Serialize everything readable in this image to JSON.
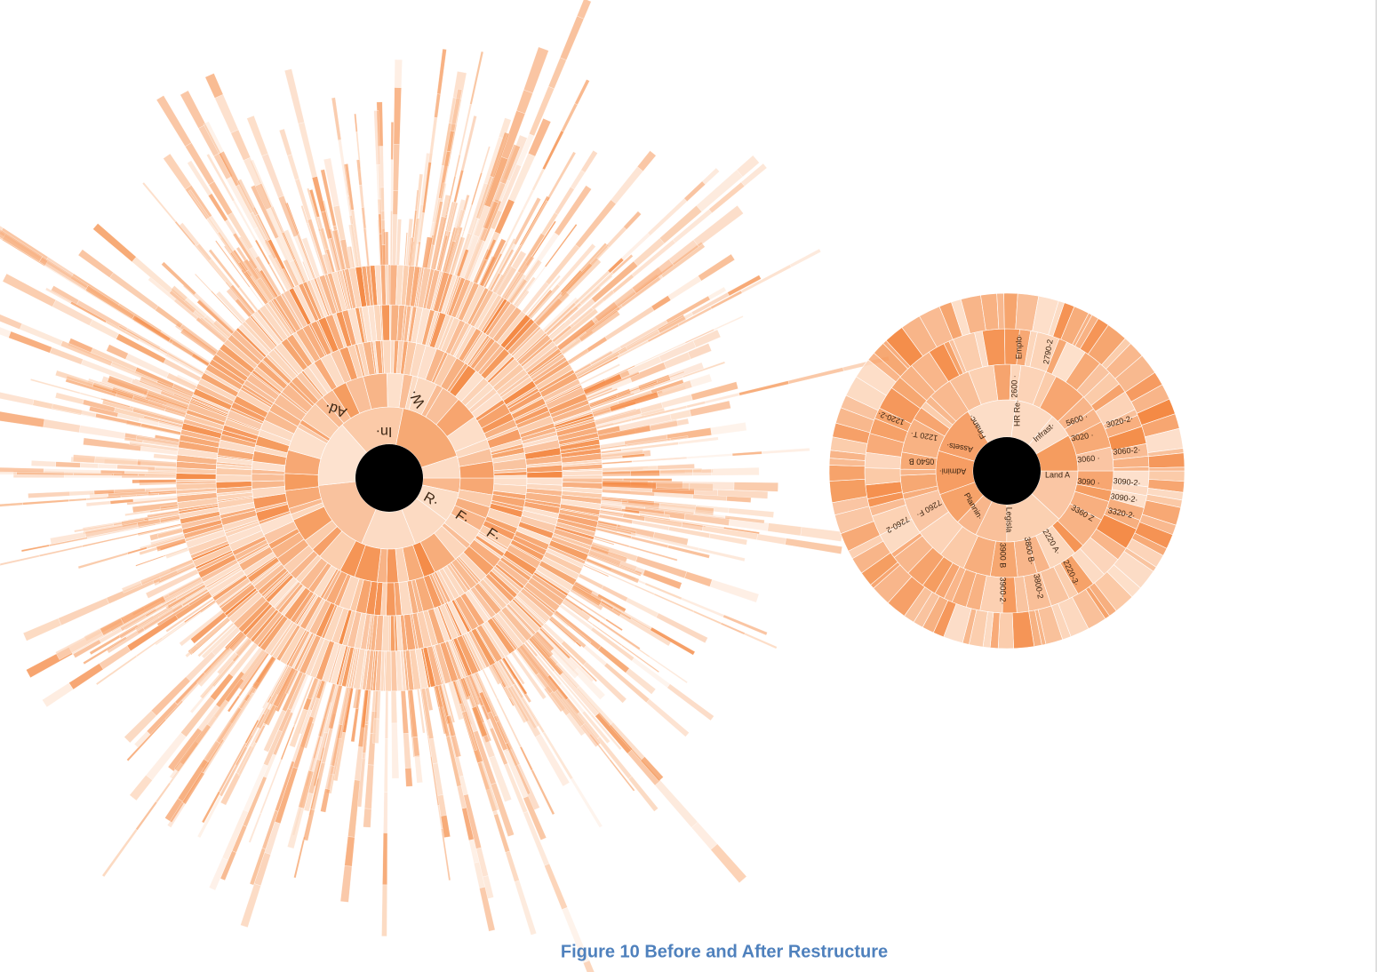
{
  "figure": {
    "before_labels": [
      "Ad·",
      "In·",
      "W·",
      "R·",
      "F·",
      "F·"
    ],
    "after_labels": [
      "Emplo·",
      "2790-2",
      "2600 ·",
      "HR Re·",
      "Infrast·",
      "5600 ·",
      "3020 ·",
      "3020-2·",
      "3060 ·",
      "3060-2·",
      "Land A",
      "3090 ·",
      "3090-2·",
      "3090-2·",
      "3320-2·",
      "3360 Z",
      "2220 A·",
      "2220-3·",
      "3800 B·",
      "3800-2",
      "3900 B",
      "3900-2·",
      "Legisla",
      "Plannin·",
      "Admini·",
      "Assets·",
      "Financ·",
      "0540 B",
      "1220 T·",
      "1220-2·",
      "7260 F·",
      "7260-2"
    ],
    "caption": "Figure 10  Before and After Restructure"
  }
}
